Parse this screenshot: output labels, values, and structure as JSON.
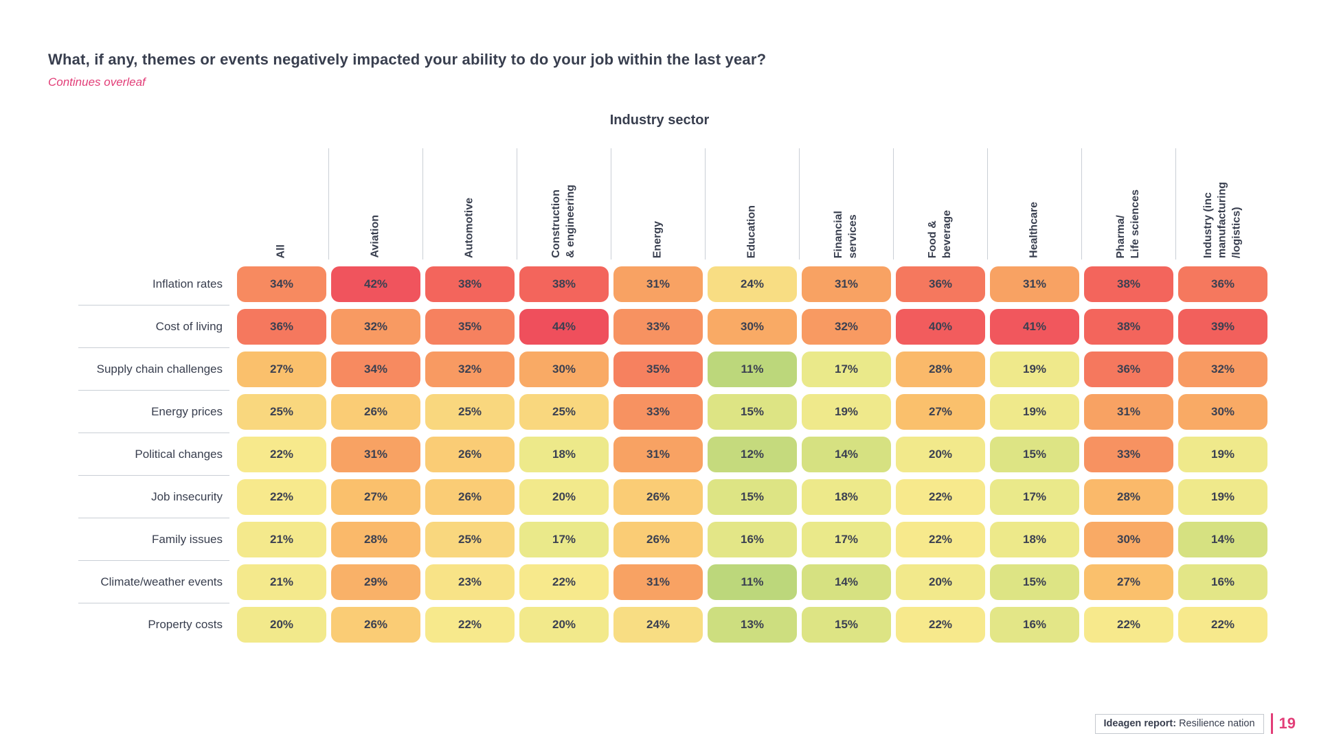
{
  "page": {
    "title": "What, if any, themes or events negatively impacted your ability to do your job within the last year?",
    "subtitle": "Continues overleaf",
    "footer": {
      "report_label": "Ideagen report:",
      "report_name": "Resilience nation",
      "page_number": "19"
    }
  },
  "colors": {
    "accent_pink": "#E23D77",
    "text_navy": "#383E4E",
    "divider_gray": "#C9CED5"
  },
  "chart_data": {
    "type": "heatmap",
    "group_header": "Industry sector",
    "unit": "%",
    "columns": [
      "All",
      "Aviation",
      "Automotive",
      "Construction\n& engineering",
      "Energy",
      "Education",
      "Financial\nservices",
      "Food &\nbeverage",
      "Healthcare",
      "Pharma/\nLife sciences",
      "Industry (inc\nmanufacturing\n/logistics)"
    ],
    "rows": [
      {
        "label": "Inflation rates",
        "values": [
          34,
          42,
          38,
          38,
          31,
          24,
          31,
          36,
          31,
          38,
          36
        ]
      },
      {
        "label": "Cost of living",
        "values": [
          36,
          32,
          35,
          44,
          33,
          30,
          32,
          40,
          41,
          38,
          39
        ]
      },
      {
        "label": "Supply chain challenges",
        "values": [
          27,
          34,
          32,
          30,
          35,
          11,
          17,
          28,
          19,
          36,
          32
        ]
      },
      {
        "label": "Energy prices",
        "values": [
          25,
          26,
          25,
          25,
          33,
          15,
          19,
          27,
          19,
          31,
          30
        ]
      },
      {
        "label": "Political changes",
        "values": [
          22,
          31,
          26,
          18,
          31,
          12,
          14,
          20,
          15,
          33,
          19
        ]
      },
      {
        "label": "Job insecurity",
        "values": [
          22,
          27,
          26,
          20,
          26,
          15,
          18,
          22,
          17,
          28,
          19
        ]
      },
      {
        "label": "Family issues",
        "values": [
          21,
          28,
          25,
          17,
          26,
          16,
          17,
          22,
          18,
          30,
          14
        ]
      },
      {
        "label": "Climate/weather events",
        "values": [
          21,
          29,
          23,
          22,
          31,
          11,
          14,
          20,
          15,
          27,
          16
        ]
      },
      {
        "label": "Property costs",
        "values": [
          20,
          26,
          22,
          20,
          24,
          13,
          15,
          22,
          16,
          22,
          22
        ]
      }
    ],
    "value_range": [
      11,
      44
    ],
    "color_scale": {
      "stops": [
        [
          11,
          "#BCD77B"
        ],
        [
          14,
          "#D6E181"
        ],
        [
          17,
          "#EAE98A"
        ],
        [
          22,
          "#F7E98C"
        ],
        [
          25,
          "#F9D77E"
        ],
        [
          27,
          "#FAC06C"
        ],
        [
          31,
          "#F8A263"
        ],
        [
          34,
          "#F78A60"
        ],
        [
          36,
          "#F5785E"
        ],
        [
          38,
          "#F3655C"
        ],
        [
          41,
          "#F1575D"
        ],
        [
          44,
          "#EF4F5C"
        ]
      ]
    }
  }
}
